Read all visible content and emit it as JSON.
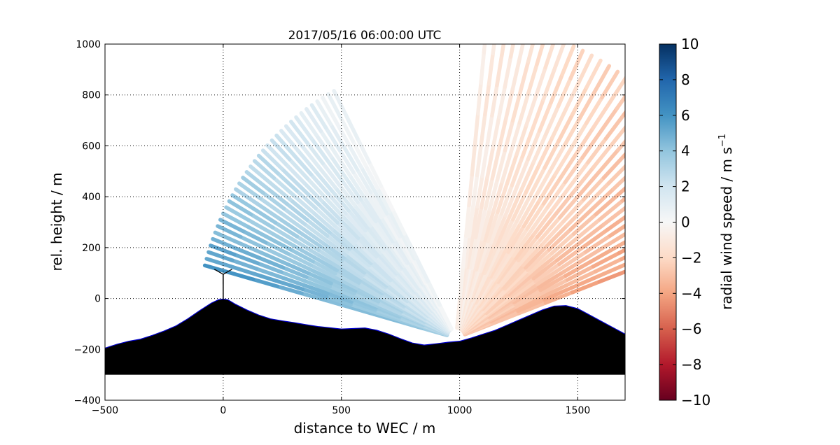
{
  "chart_data": {
    "type": "heatmap",
    "title": "2017/05/16 06:00:00 UTC",
    "xlabel": "distance to WEC / m",
    "ylabel": "rel. height / m",
    "xlim": [
      -500,
      1700
    ],
    "ylim": [
      -400,
      1000
    ],
    "xticks": [
      -500,
      0,
      500,
      1000,
      1500
    ],
    "yticks": [
      -400,
      -200,
      0,
      200,
      400,
      600,
      800,
      1000
    ],
    "grid": true,
    "colorbar": {
      "label_main": "radial wind speed / m s",
      "label_exp": "−1",
      "range": [
        -10,
        10
      ],
      "ticks": [
        10,
        8,
        6,
        4,
        2,
        0,
        -2,
        -4,
        -6,
        -8,
        -10
      ],
      "tick_labels": [
        "10",
        "8",
        "6",
        "4",
        "2",
        "0",
        "−2",
        "−4",
        "−6",
        "−8",
        "−10"
      ],
      "colors_low_to_high": [
        "#67001f",
        "#b2182b",
        "#d6604d",
        "#f4a582",
        "#fddbc7",
        "#f7f7f7",
        "#d1e5f0",
        "#92c5de",
        "#4393c3",
        "#2166ac",
        "#053061"
      ]
    },
    "scan": {
      "lidar_position": [
        985,
        -155
      ],
      "west_sector": {
        "elev_deg_min": 15,
        "elev_deg_max": 62,
        "max_range_m": 1100,
        "speed_near_ground": 6,
        "speed_aloft": 0.5
      },
      "east_sector": {
        "elev_deg_min": 20,
        "elev_deg_max": 84,
        "max_range_m": 1250,
        "speed_near_ground": -5,
        "speed_aloft": -1
      }
    },
    "terrain": {
      "x": [
        -500,
        -450,
        -400,
        -350,
        -300,
        -250,
        -200,
        -150,
        -100,
        -50,
        -20,
        0,
        20,
        50,
        100,
        150,
        200,
        250,
        300,
        350,
        400,
        450,
        500,
        550,
        600,
        650,
        700,
        750,
        800,
        850,
        900,
        950,
        1000,
        1050,
        1100,
        1150,
        1200,
        1250,
        1300,
        1350,
        1400,
        1450,
        1500,
        1550,
        1600,
        1650,
        1700
      ],
      "y": [
        -195,
        -180,
        -168,
        -160,
        -145,
        -128,
        -108,
        -80,
        -48,
        -18,
        -5,
        -2,
        -5,
        -22,
        -45,
        -65,
        -80,
        -88,
        -95,
        -103,
        -110,
        -115,
        -120,
        -118,
        -116,
        -125,
        -140,
        -158,
        -175,
        -183,
        -178,
        -172,
        -168,
        -155,
        -140,
        -125,
        -105,
        -85,
        -65,
        -45,
        -30,
        -28,
        -40,
        -65,
        -90,
        -115,
        -140
      ],
      "base": -300
    },
    "wec": {
      "x": 0,
      "hub_height": 95,
      "blade_length": 40
    }
  }
}
